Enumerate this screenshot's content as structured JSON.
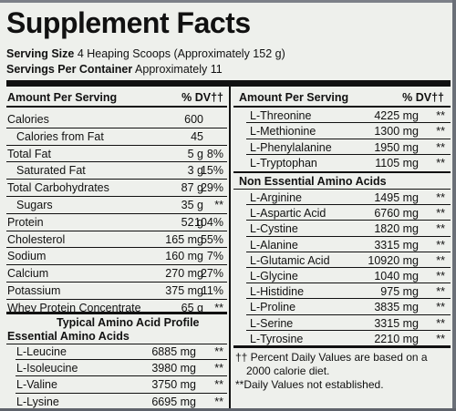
{
  "title": "Supplement Facts",
  "serving_size": {
    "label": "Serving Size",
    "value": "4 Heaping Scoops (Approximately 152 g)"
  },
  "servings_per_container": {
    "label": "Servings Per Container",
    "value": "Approximately 11"
  },
  "left_header": {
    "amount": "Amount Per Serving",
    "dv": "% DV††"
  },
  "right_header": {
    "amount": "Amount Per Serving",
    "dv": "% DV††"
  },
  "left_rows": [
    {
      "name": "Calories",
      "amount": "600",
      "dv": ""
    },
    {
      "name": "Calories from Fat",
      "amount": "45",
      "dv": ""
    },
    {
      "name": "Total Fat",
      "amount": "5 g",
      "dv": "8%"
    },
    {
      "name": "Saturated Fat",
      "amount": "3 g",
      "dv": "15%"
    },
    {
      "name": "Total Carbohydrates",
      "amount": "87 g",
      "dv": "29%"
    },
    {
      "name": "Sugars",
      "amount": "35 g",
      "dv": "**"
    },
    {
      "name": "Protein",
      "amount": "52 g",
      "dv": "104%"
    },
    {
      "name": "Cholesterol",
      "amount": "165 mg",
      "dv": "55%"
    },
    {
      "name": "Sodium",
      "amount": "160 mg",
      "dv": "7%"
    },
    {
      "name": "Calcium",
      "amount": "270 mg",
      "dv": "27%"
    },
    {
      "name": "Potassium",
      "amount": "375 mg",
      "dv": "11%"
    },
    {
      "name": "Whey Protein Concentrate",
      "amount": "65 g",
      "dv": "**"
    }
  ],
  "amino_profile_title": "Typical Amino Acid Profile",
  "essential_title": "Essential Amino Acids",
  "essential_rows": [
    {
      "name": "L-Leucine",
      "amount": "6885 mg",
      "dv": "**"
    },
    {
      "name": "L-Isoleucine",
      "amount": "3980 mg",
      "dv": "**"
    },
    {
      "name": "L-Valine",
      "amount": "3750 mg",
      "dv": "**"
    },
    {
      "name": "L-Lysine",
      "amount": "6695 mg",
      "dv": "**"
    }
  ],
  "right_essential_rows": [
    {
      "name": "L-Threonine",
      "amount": "4225 mg",
      "dv": "**"
    },
    {
      "name": "L-Methionine",
      "amount": "1300 mg",
      "dv": "**"
    },
    {
      "name": "L-Phenylalanine",
      "amount": "1950 mg",
      "dv": "**"
    },
    {
      "name": "L-Tryptophan",
      "amount": "1105 mg",
      "dv": "**"
    }
  ],
  "non_essential_title": "Non Essential Amino Acids",
  "non_essential_rows": [
    {
      "name": "L-Arginine",
      "amount": "1495 mg",
      "dv": "**"
    },
    {
      "name": "L-Aspartic Acid",
      "amount": "6760 mg",
      "dv": "**"
    },
    {
      "name": "L-Cystine",
      "amount": "1820 mg",
      "dv": "**"
    },
    {
      "name": "L-Alanine",
      "amount": "3315 mg",
      "dv": "**"
    },
    {
      "name": "L-Glutamic Acid",
      "amount": "10920 mg",
      "dv": "**"
    },
    {
      "name": "L-Glycine",
      "amount": "1040 mg",
      "dv": "**"
    },
    {
      "name": "L-Histidine",
      "amount": "975 mg",
      "dv": "**"
    },
    {
      "name": "L-Proline",
      "amount": "3835 mg",
      "dv": "**"
    },
    {
      "name": "L-Serine",
      "amount": "3315 mg",
      "dv": "**"
    },
    {
      "name": "L-Tyrosine",
      "amount": "2210 mg",
      "dv": "**"
    }
  ],
  "footnote_1a": "†† Percent Daily Values are based on a",
  "footnote_1b": "2000 calorie diet.",
  "footnote_2": "**Daily Values not established."
}
